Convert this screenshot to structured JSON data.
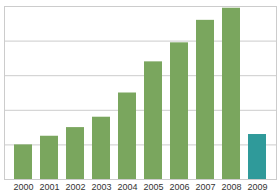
{
  "chart_data": {
    "type": "bar",
    "categories": [
      "2000",
      "2001",
      "2002",
      "2003",
      "2004",
      "2005",
      "2006",
      "2007",
      "2008",
      "2009"
    ],
    "values": [
      1.0,
      1.25,
      1.5,
      1.8,
      2.5,
      3.4,
      3.95,
      4.6,
      4.95,
      1.3
    ],
    "colors": [
      "#7aa65e",
      "#7aa65e",
      "#7aa65e",
      "#7aa65e",
      "#7aa65e",
      "#7aa65e",
      "#7aa65e",
      "#7aa65e",
      "#7aa65e",
      "#2f9a9a"
    ],
    "ylim": [
      0,
      5
    ],
    "yticks": [
      0,
      1,
      2,
      3,
      4,
      5
    ],
    "grid": true,
    "tick_labels": "x"
  }
}
